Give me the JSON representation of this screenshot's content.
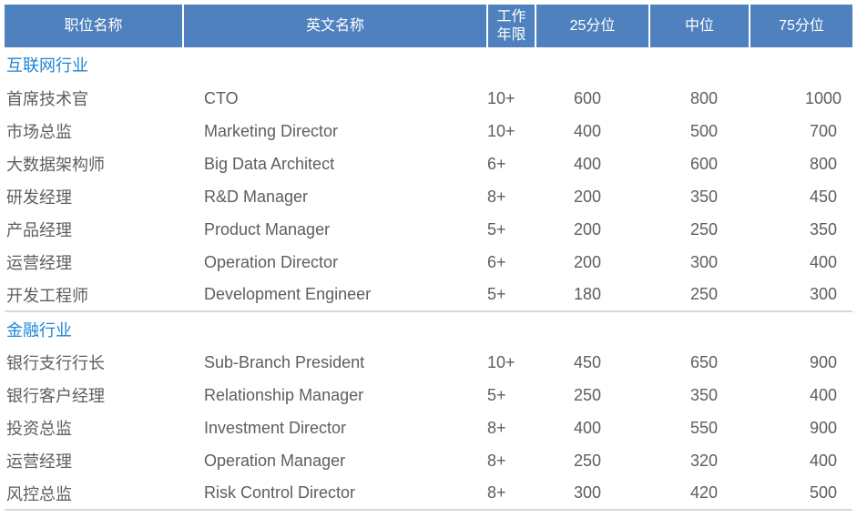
{
  "colors": {
    "header_bg": "#4E81BD",
    "header_text": "#FFFFFF",
    "section_title": "#1E86D6",
    "body_text": "#5E5E60",
    "divider": "#D8D8D8"
  },
  "table": {
    "columns": [
      {
        "label": "职位名称"
      },
      {
        "label": "英文名称"
      },
      {
        "label": "工作年限"
      },
      {
        "label": "25分位"
      },
      {
        "label": "中位"
      },
      {
        "label": "75分位"
      }
    ],
    "sections": [
      {
        "title": "互联网行业",
        "rows": [
          {
            "position": "首席技术官",
            "english": "CTO",
            "years": "10+",
            "p25": "600",
            "median": "800",
            "p75": "1000"
          },
          {
            "position": "市场总监",
            "english": "Marketing Director",
            "years": "10+",
            "p25": "400",
            "median": "500",
            "p75": "700"
          },
          {
            "position": "大数据架构师",
            "english": "Big Data Architect",
            "years": "6+",
            "p25": "400",
            "median": "600",
            "p75": "800"
          },
          {
            "position": "研发经理",
            "english": "R&D Manager",
            "years": "8+",
            "p25": "200",
            "median": "350",
            "p75": "450"
          },
          {
            "position": "产品经理",
            "english": "Product Manager",
            "years": "5+",
            "p25": "200",
            "median": "250",
            "p75": "350"
          },
          {
            "position": "运营经理",
            "english": "Operation Director",
            "years": "6+",
            "p25": "200",
            "median": "300",
            "p75": "400"
          },
          {
            "position": "开发工程师",
            "english": "Development Engineer",
            "years": "5+",
            "p25": "180",
            "median": "250",
            "p75": "300"
          }
        ]
      },
      {
        "title": "金融行业",
        "rows": [
          {
            "position": "银行支行行长",
            "english": "Sub-Branch President",
            "years": "10+",
            "p25": "450",
            "median": "650",
            "p75": "900"
          },
          {
            "position": "银行客户经理",
            "english": "Relationship Manager",
            "years": "5+",
            "p25": "250",
            "median": "350",
            "p75": "400"
          },
          {
            "position": "投资总监",
            "english": "Investment Director",
            "years": "8+",
            "p25": "400",
            "median": "550",
            "p75": "900"
          },
          {
            "position": "运营经理",
            "english": "Operation Manager",
            "years": "8+",
            "p25": "250",
            "median": "320",
            "p75": "400"
          },
          {
            "position": "风控总监",
            "english": "Risk Control Director",
            "years": "8+",
            "p25": "300",
            "median": "420",
            "p75": "500"
          }
        ]
      }
    ]
  }
}
